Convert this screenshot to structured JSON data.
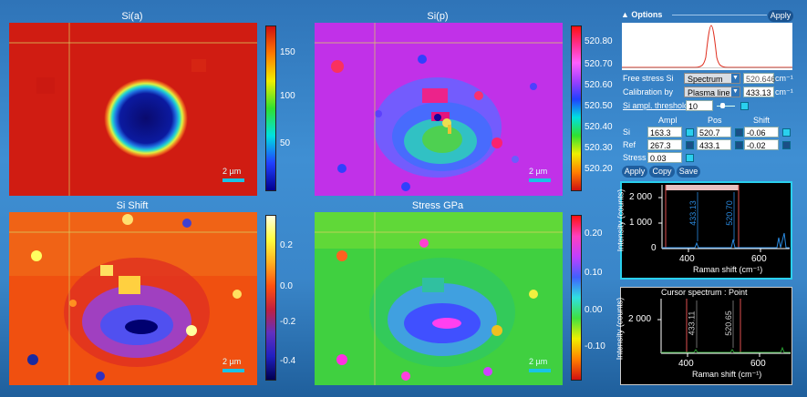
{
  "maps": [
    {
      "title": "Si(a)",
      "ticks": [
        "150",
        "100",
        "50"
      ],
      "scale": "2 µm"
    },
    {
      "title": "Si(p)",
      "ticks": [
        "520.80",
        "520.70",
        "520.60",
        "520.50",
        "520.40",
        "520.30",
        "520.20"
      ],
      "scale": "2 µm"
    },
    {
      "title": "Si Shift",
      "ticks": [
        "0.2",
        "0.0",
        "-0.2",
        "-0.4"
      ],
      "scale": "2 µm"
    },
    {
      "title": "Stress GPa",
      "ticks": [
        "0.20",
        "0.10",
        "0.00",
        "-0.10"
      ],
      "scale": "2 µm"
    }
  ],
  "options": {
    "title": "▲ Options",
    "apply_top": "Apply",
    "free_stress_label": "Free stress Si",
    "free_stress_select": "Spectrum",
    "free_stress_value": "520.646",
    "unit": "cm⁻¹",
    "calibration_label": "Calibration by",
    "calibration_select": "Plasma line",
    "calibration_value": "433.13",
    "threshold_label": "Si ampl. threshold",
    "threshold_value": "10",
    "col_ampl": "Ampl",
    "col_pos": "Pos",
    "col_shift": "Shift",
    "row_si": "Si",
    "row_ref": "Ref",
    "row_stress": "Stress",
    "si_ampl": "163.3",
    "si_pos": "520.7",
    "si_shift": "-0.06",
    "ref_ampl": "267.3",
    "ref_pos": "433.1",
    "ref_shift": "-0.02",
    "stress_val": "0.03",
    "apply": "Apply",
    "copy": "Copy",
    "save": "Save"
  },
  "spectrum1": {
    "ylabel": "Intensity (counts)",
    "xlabel": "Raman shift (cm⁻¹)",
    "ytick": "2 000",
    "ytick2": "1 000",
    "ytick0": "0",
    "xticks": [
      "400",
      "600"
    ],
    "peak1": "433.13",
    "peak2": "520.70"
  },
  "spectrum2": {
    "title": "Cursor spectrum : Point",
    "ylabel": "Intensity (counts)",
    "xlabel": "Raman shift (cm⁻¹)",
    "ytick": "2 000",
    "xticks": [
      "400",
      "600"
    ],
    "peak1": "433.11",
    "peak2": "520.65"
  },
  "colors": {
    "accent": "#19c3e6",
    "panel": "#2f74b8"
  }
}
